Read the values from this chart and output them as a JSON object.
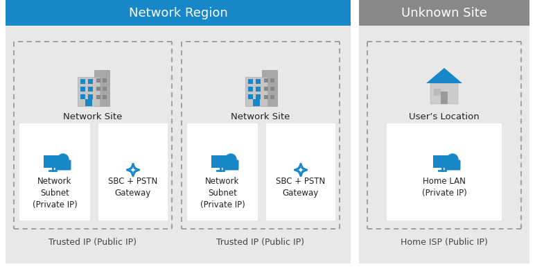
{
  "title_network_region": "Network Region",
  "title_unknown_site": "Unknown Site",
  "header_blue": "#1787c8",
  "header_gray": "#888888",
  "bg_light_gray": "#e8e8e8",
  "bg_white": "#ffffff",
  "text_dark": "#222222",
  "text_white": "#ffffff",
  "blue_icon": "#1787c8",
  "dashed_border": "#999999",
  "label_trusted1": "Trusted IP (Public IP)",
  "label_trusted2": "Trusted IP (Public IP)",
  "label_home_isp": "Home ISP (Public IP)",
  "label_network_site1": "Network Site",
  "label_network_site2": "Network Site",
  "label_users_location": "User’s Location",
  "label_subnet1": "Network\nSubnet\n(Private IP)",
  "label_sbc1": "SBC + PSTN\nGateway",
  "label_subnet2": "Network\nSubnet\n(Private IP)",
  "label_sbc2": "SBC + PSTN\nGateway",
  "label_home_lan": "Home LAN\n(Private IP)"
}
